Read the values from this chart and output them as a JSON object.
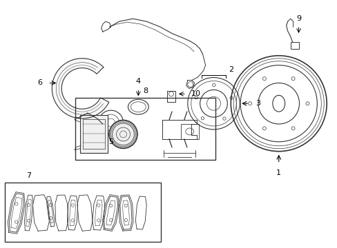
{
  "bg_color": "#ffffff",
  "line_color": "#333333",
  "figsize": [
    4.89,
    3.6
  ],
  "dpi": 100
}
